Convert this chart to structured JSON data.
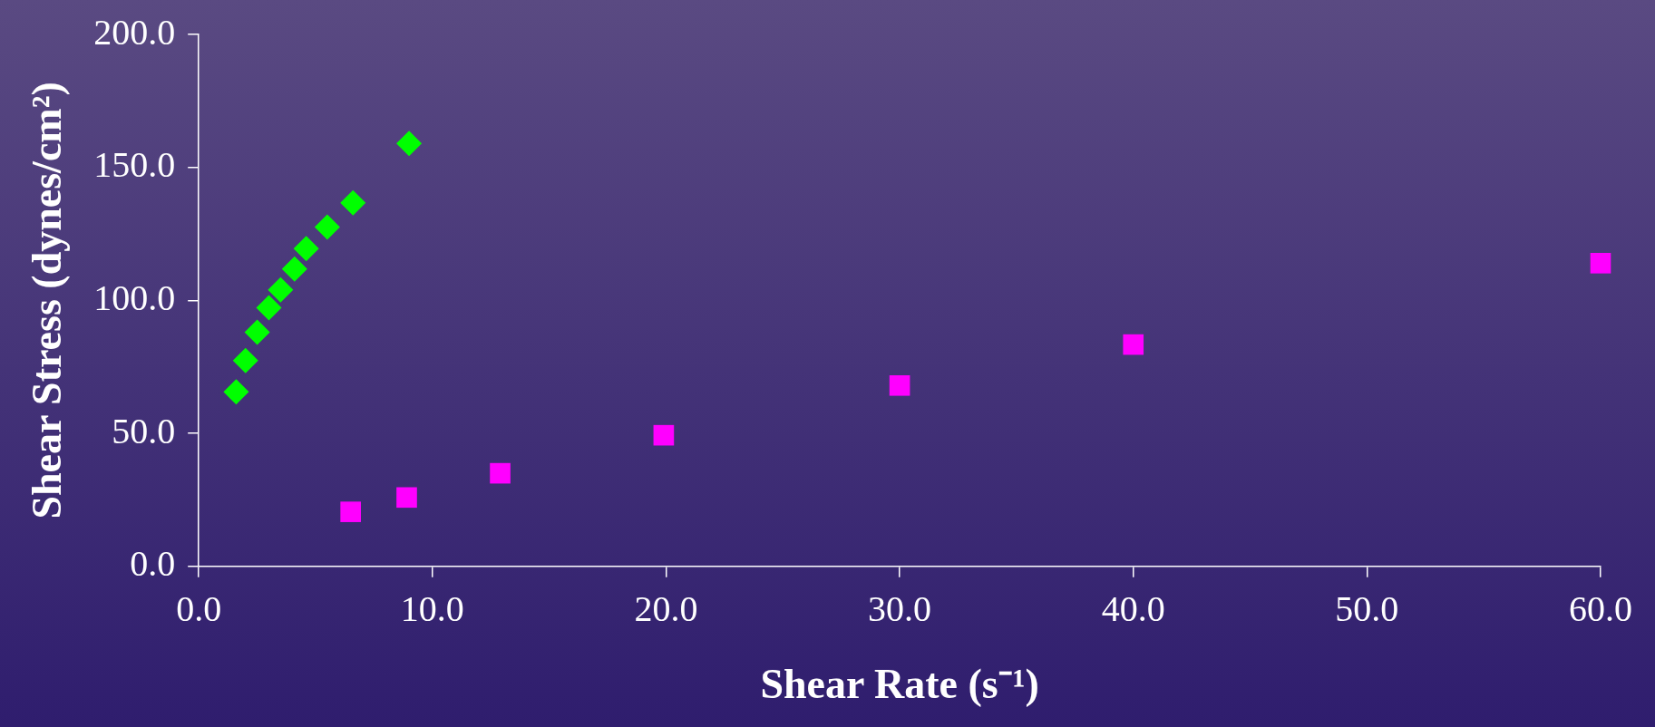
{
  "chart_data": {
    "type": "scatter",
    "xlabel": "Shear Rate (s⁻¹)",
    "ylabel": "Shear Stress (dynes/cm²)",
    "xlim": [
      0,
      60
    ],
    "xticks": [
      {
        "value": 0,
        "label": "0.0"
      },
      {
        "value": 10,
        "label": "10.0"
      },
      {
        "value": 20,
        "label": "20.0"
      },
      {
        "value": 30,
        "label": "30.0"
      },
      {
        "value": 40,
        "label": "40.0"
      },
      {
        "value": 50,
        "label": "50.0"
      },
      {
        "value": 60,
        "label": "60.0"
      }
    ],
    "ylim": [
      0,
      200
    ],
    "yticks": [
      {
        "value": 0,
        "label": "0.0"
      },
      {
        "value": 50,
        "label": "50.0"
      },
      {
        "value": 100,
        "label": "100.0"
      },
      {
        "value": 150,
        "label": "150.0"
      },
      {
        "value": 200,
        "label": "200.0"
      }
    ],
    "grid": false,
    "legend": false,
    "series": [
      {
        "color": "#00ff00",
        "marker": "diamond",
        "x": [
          1.6,
          2.0,
          2.5,
          3.0,
          3.5,
          4.1,
          4.6,
          5.5,
          6.6,
          9.0
        ],
        "values": [
          65.6,
          77.4,
          88.0,
          97.2,
          104.0,
          111.8,
          119.5,
          127.6,
          136.7,
          159.0
        ]
      },
      {
        "color": "#ff00ff",
        "marker": "square",
        "x": [
          6.5,
          8.9,
          12.9,
          19.9,
          30,
          40,
          60
        ],
        "values": [
          20.5,
          25.9,
          35.0,
          49.3,
          68,
          83.4,
          114
        ]
      }
    ]
  }
}
